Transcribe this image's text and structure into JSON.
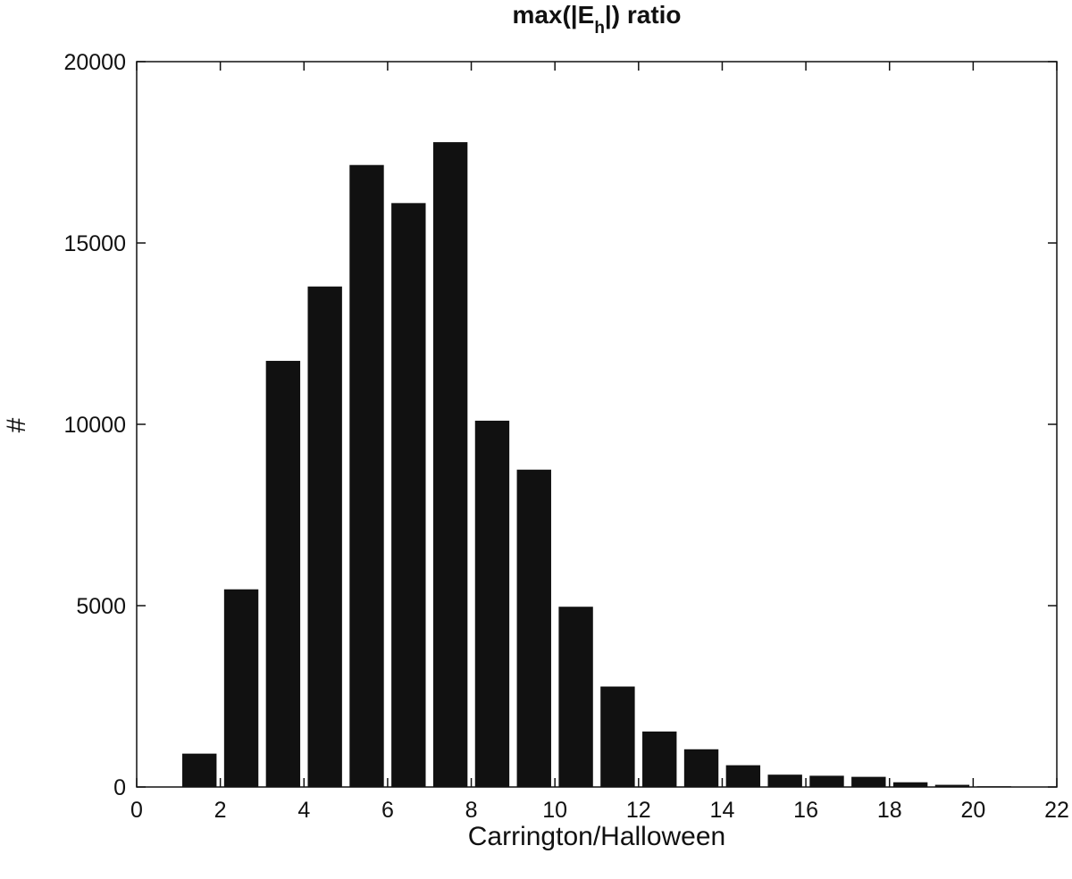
{
  "chart_data": {
    "type": "bar",
    "title_prefix": "max(|E",
    "title_subscript": "h",
    "title_suffix": "|) ratio",
    "xlabel": "Carrington/Halloween",
    "ylabel": "#",
    "xlim": [
      0,
      22
    ],
    "ylim": [
      0,
      20000
    ],
    "xticks": [
      0,
      2,
      4,
      6,
      8,
      10,
      12,
      14,
      16,
      18,
      20,
      22
    ],
    "yticks": [
      0,
      5000,
      10000,
      15000,
      20000
    ],
    "bin_width": 1,
    "bar_color": "#111111",
    "grid": false,
    "x": [
      1.5,
      2.5,
      3.5,
      4.5,
      5.5,
      6.5,
      7.5,
      8.5,
      9.5,
      10.5,
      11.5,
      12.5,
      13.5,
      14.5,
      15.5,
      16.5,
      17.5,
      18.5,
      19.5,
      20.5
    ],
    "values": [
      920,
      5450,
      11750,
      13800,
      17150,
      16100,
      17780,
      10100,
      8750,
      4970,
      2770,
      1530,
      1040,
      600,
      340,
      310,
      280,
      130,
      60,
      20
    ]
  }
}
